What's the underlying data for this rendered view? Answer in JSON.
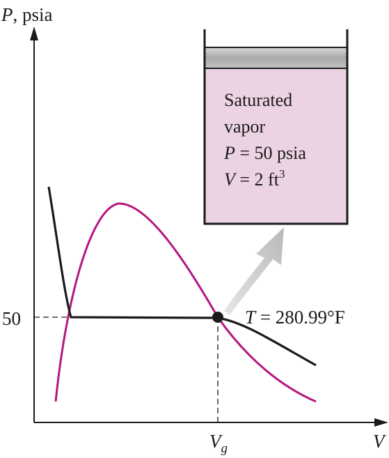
{
  "axes": {
    "y_label_symbol": "P",
    "y_label_unit": ", psia",
    "x_label": "V",
    "y_tick_label": "50",
    "x_tick_symbol": "V",
    "x_tick_subscript": "g"
  },
  "isotherm": {
    "label_symbol": "T",
    "label_value": " = 280.99°F"
  },
  "cylinder": {
    "line1": "Saturated",
    "line2": "vapor",
    "line3_symbol": "P",
    "line3_value": " = 50 psia",
    "line4_symbol": "V",
    "line4_value": " = 2 ft",
    "line4_superscript": "3"
  },
  "colors": {
    "dome": "#b5167f",
    "isotherm": "#1a1a1a",
    "cylinder_fill": "#ecd3e4",
    "piston": "#b8b8b8",
    "arrow": "#c8c8c8"
  }
}
